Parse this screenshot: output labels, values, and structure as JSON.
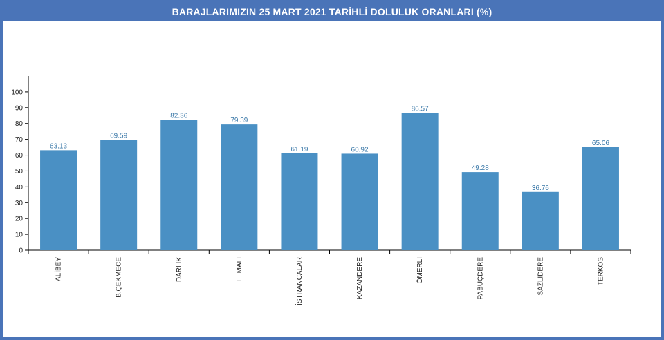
{
  "colors": {
    "frame": "#4a74b8",
    "bar": "#4a90c4",
    "value_label": "#3a78a8"
  },
  "chart_data": {
    "type": "bar",
    "title": "BARAJLARIMIZIN 25 MART 2021 TARİHLİ DOLULUK ORANLARI (%)",
    "categories": [
      "ALİBEY",
      "B.ÇEKMECE",
      "DARLIK",
      "ELMALI",
      "İSTRANCALAR",
      "KAZANDERE",
      "ÖMERLİ",
      "PABUÇDERE",
      "SAZLIDERE",
      "TERKOS"
    ],
    "values": [
      63.13,
      69.59,
      82.36,
      79.39,
      61.19,
      60.92,
      86.57,
      49.28,
      36.76,
      65.06
    ],
    "value_labels": [
      "63.13",
      "69.59",
      "82.36",
      "79.39",
      "61.19",
      "60.92",
      "86.57",
      "49.28",
      "36.76",
      "65.06"
    ],
    "yticks": [
      "0",
      "10",
      "20",
      "30",
      "40",
      "50",
      "60",
      "70",
      "80",
      "90",
      "100"
    ],
    "ylim": [
      0,
      110
    ],
    "xlabel": "",
    "ylabel": "",
    "grid": false,
    "legend": "none"
  }
}
